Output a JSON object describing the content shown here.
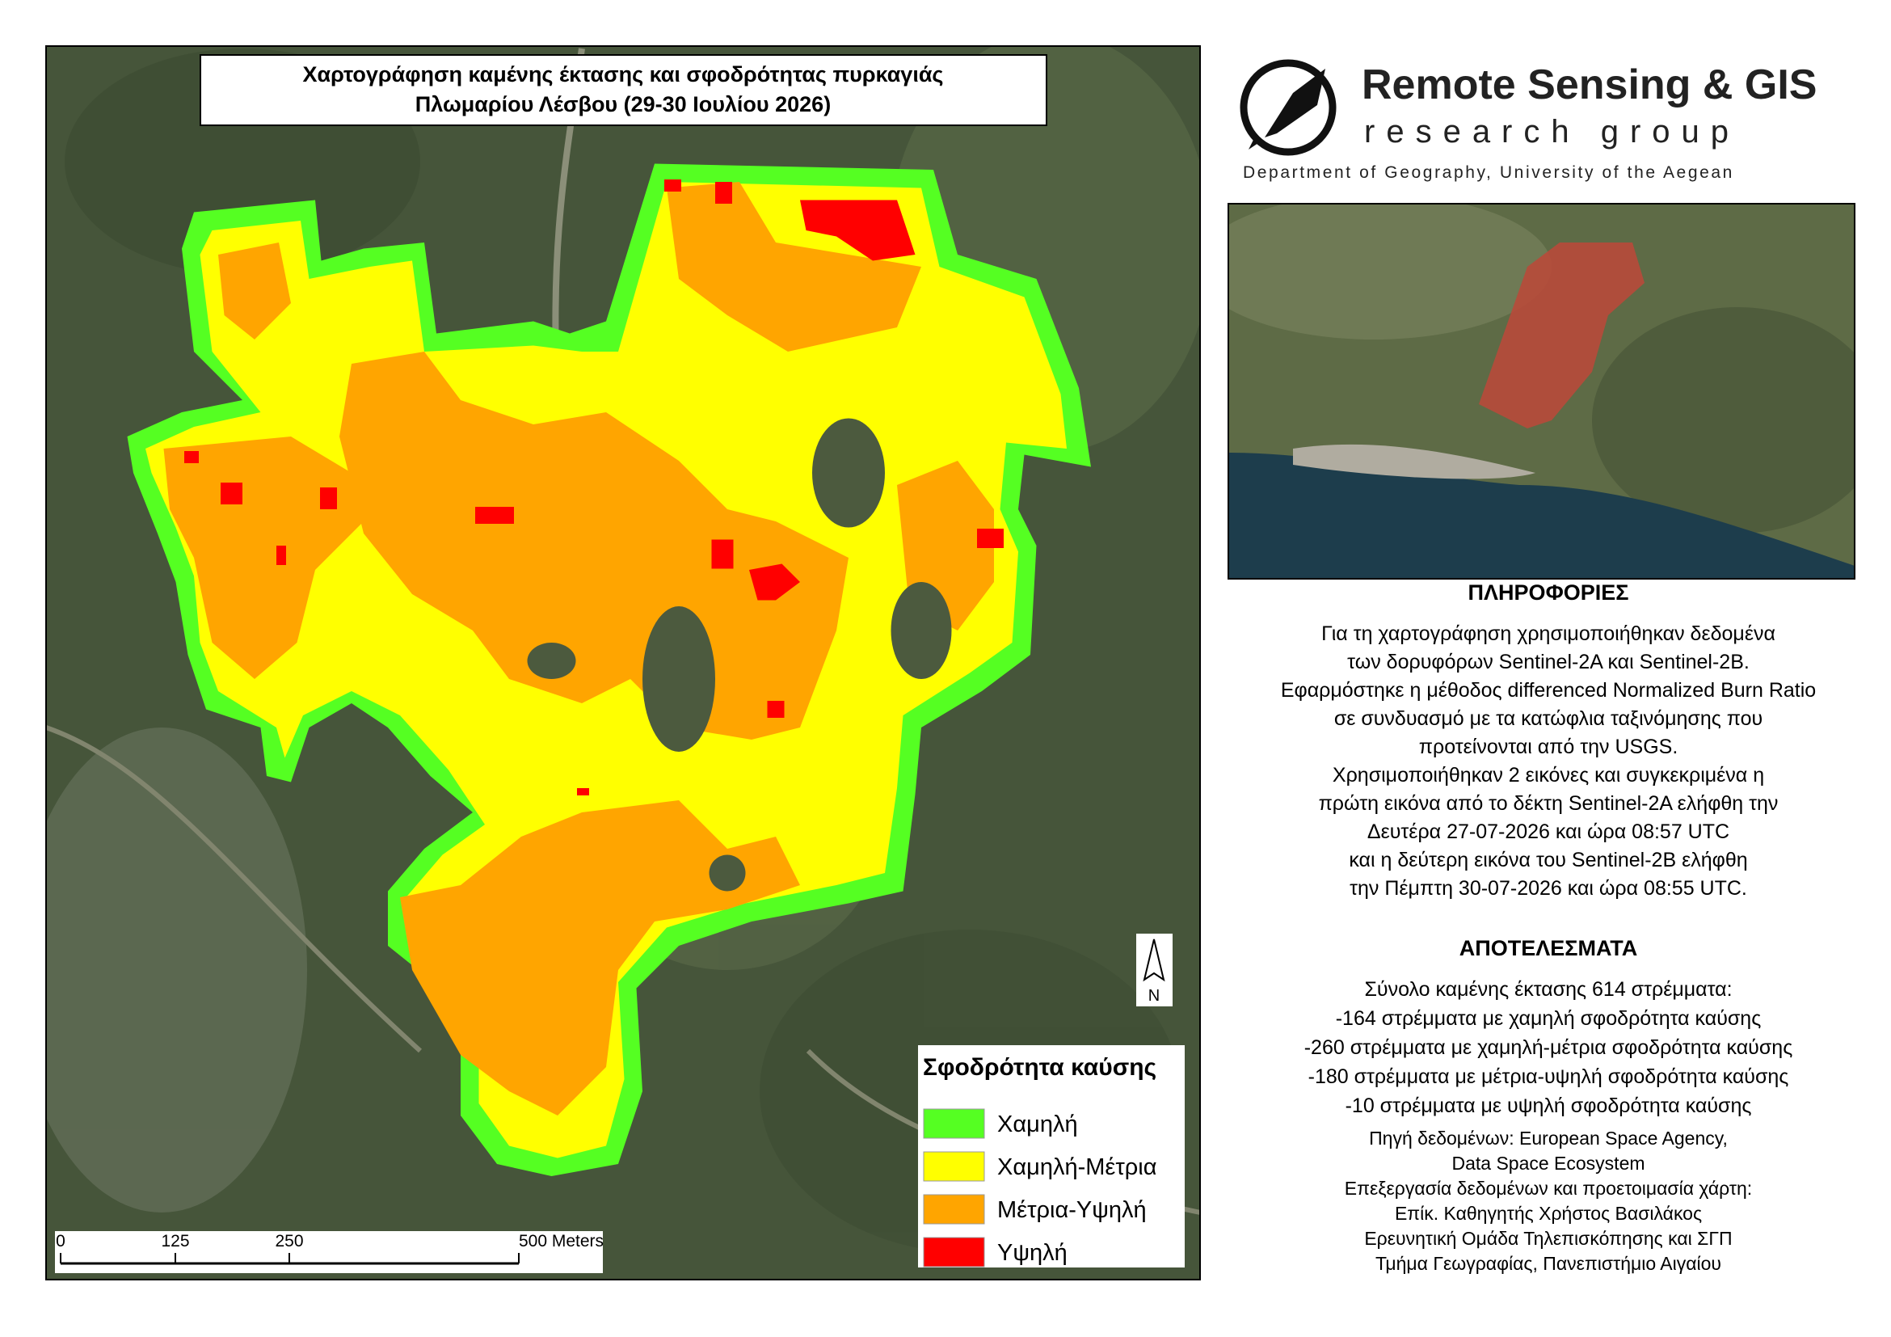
{
  "map": {
    "title": [
      "Χαρτογράφηση καμένης έκτασης και σφοδρότητας πυρκαγιάς",
      "Πλωμαρίου Λέσβου (29-30 Ιουλίου 2026)"
    ],
    "legend": {
      "title": "Σφοδρότητα καύσης",
      "items": [
        {
          "label": "Χαμηλή",
          "color": "#55ff22"
        },
        {
          "label": "Χαμηλή-Μέτρια",
          "color": "#ffff00"
        },
        {
          "label": "Μέτρια-Υψηλή",
          "color": "#ffa500"
        },
        {
          "label": "Υψηλή",
          "color": "#ff0000"
        }
      ]
    },
    "scale_bar": [
      "0",
      "125",
      "250",
      "500 Meters"
    ],
    "north_arrow": "N"
  },
  "logo": {
    "name": "Remote Sensing & GIS",
    "subtitle": "research group",
    "department": "Department of Geography, University of the Aegean"
  },
  "info": {
    "heading": "ΠΛΗΡΟΦΟΡΙΕΣ",
    "lines": [
      "Για τη χαρτογράφηση χρησιμοποιήθηκαν δεδομένα",
      "των δορυφόρων Sentinel-2A και Sentinel-2B.",
      "Εφαρμόστηκε η μέθοδος differenced Normalized Burn Ratio",
      "σε συνδυασμό με τα κατώφλια ταξινόμησης που",
      "προτείνονται από την USGS.",
      "Χρησιμοποιήθηκαν 2 εικόνες και συγκεκριμένα η",
      "πρώτη εικόνα από το δέκτη Sentinel-2A ελήφθη την",
      "Δευτέρα 27-07-2026 και ώρα 08:57 UTC",
      "και η δεύτερη εικόνα του Sentinel-2B ελήφθη",
      "την Πέμπτη 30-07-2026 και ώρα 08:55 UTC."
    ]
  },
  "results": {
    "heading": "ΑΠΟΤΕΛΕΣΜΑΤΑ",
    "lines": [
      "Σύνολο καμένης έκτασης 614 στρέμματα:",
      "-164 στρέμματα με χαμηλή σφοδρότητα καύσης",
      "-260 στρέμματα με χαμηλή-μέτρια σφοδρότητα καύσης",
      "-180 στρέμματα με μέτρια-υψηλή σφοδρότητα καύσης",
      "-10 στρέμματα με υψηλή σφοδρότητα καύσης"
    ]
  },
  "credits": [
    "Πηγή δεδομένων: European Space Agency,",
    "Data Space Ecosystem",
    "Επεξεργασία δεδομένων και προετοιμασία χάρτη:",
    "Επίκ. Καθηγητής Χρήστος Βασιλάκος",
    "Ερευνητική Ομάδα Τηλεπισκόπησης και ΣΓΠ",
    "Τμήμα Γεωγραφίας, Πανεπιστήμιο Αιγαίου"
  ]
}
